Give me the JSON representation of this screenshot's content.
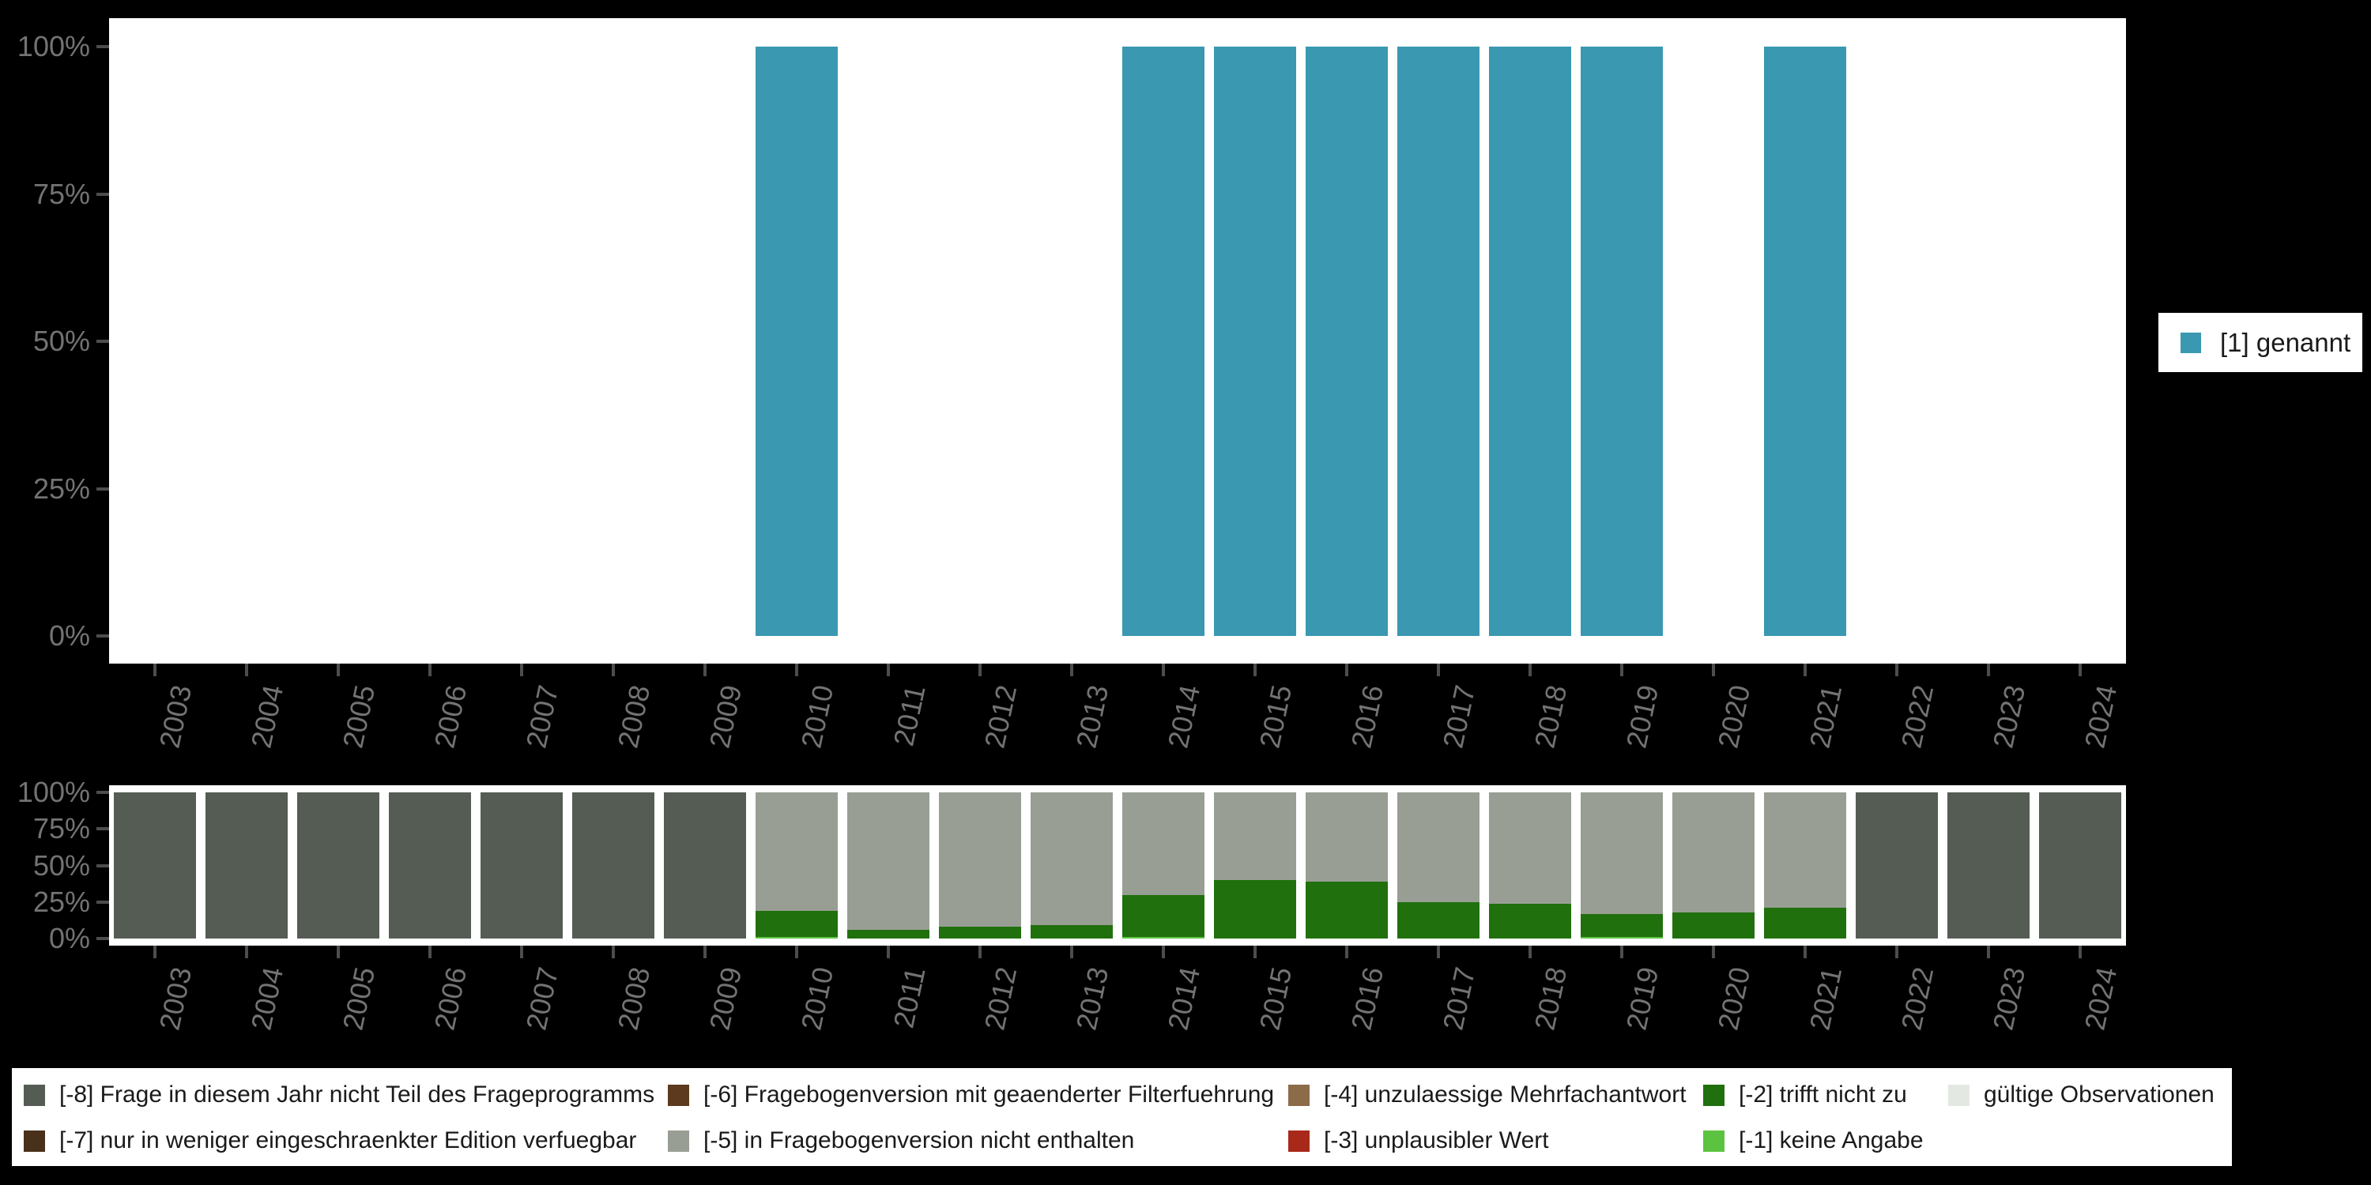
{
  "colors": {
    "background": "#000000",
    "panel": "#ffffff",
    "axis_text": "#737373",
    "axis_tick": "#4d4d4d",
    "legend_text": "#1a1a1a",
    "genannt_teal": "#3a98b1",
    "minus8_gray": "#555c54",
    "minus7_darkbrown": "#49301b",
    "minus6_brown": "#5d3a1e",
    "minus5_lightgray": "#999e95",
    "minus4_tan": "#8c6b49",
    "minus3_red": "#a8281a",
    "minus2_darkgreen": "#20700d",
    "minus1_lightgreen": "#5cc340",
    "valid_palegray": "#e4e8e2"
  },
  "top_legend": {
    "label": "[1] genannt",
    "color": "#3a98b1"
  },
  "bottom_legend": {
    "items": [
      {
        "label": "[-8] Frage in diesem Jahr nicht Teil des Frageprogramms",
        "color": "#555c54",
        "col": 1,
        "row": 1
      },
      {
        "label": "[-7] nur in weniger eingeschraenkter Edition verfuegbar",
        "color": "#49301b",
        "col": 1,
        "row": 2
      },
      {
        "label": "[-6] Fragebogenversion mit geaenderter Filterfuehrung",
        "color": "#5d3a1e",
        "col": 2,
        "row": 1
      },
      {
        "label": "[-5] in Fragebogenversion nicht enthalten",
        "color": "#999e95",
        "col": 2,
        "row": 2
      },
      {
        "label": "[-4] unzulaessige Mehrfachantwort",
        "color": "#8c6b49",
        "col": 3,
        "row": 1
      },
      {
        "label": "[-3] unplausibler Wert",
        "color": "#a8281a",
        "col": 3,
        "row": 2
      },
      {
        "label": "[-2] trifft nicht zu",
        "color": "#20700d",
        "col": 4,
        "row": 1
      },
      {
        "label": "[-1] keine Angabe",
        "color": "#5cc340",
        "col": 4,
        "row": 2
      },
      {
        "label": "gültige Observationen",
        "color": "#e4e8e2",
        "col": 5,
        "row": 1
      }
    ]
  },
  "chart_data": [
    {
      "type": "bar",
      "title": "",
      "categories": [
        "2003",
        "2004",
        "2005",
        "2006",
        "2007",
        "2008",
        "2009",
        "2010",
        "2011",
        "2012",
        "2013",
        "2014",
        "2015",
        "2016",
        "2017",
        "2018",
        "2019",
        "2020",
        "2021",
        "2022",
        "2023",
        "2024"
      ],
      "series": [
        {
          "name": "[1] genannt",
          "color": "#3a98b1",
          "values": [
            null,
            null,
            null,
            null,
            null,
            null,
            null,
            100,
            null,
            null,
            null,
            100,
            100,
            100,
            100,
            100,
            100,
            null,
            100,
            null,
            null,
            null
          ]
        }
      ],
      "xlabel": "",
      "ylabel": "",
      "ytick_labels": [
        "0%",
        "25%",
        "50%",
        "75%",
        "100%"
      ],
      "ylim": [
        0,
        100
      ],
      "grid": false,
      "legend_position": "right"
    },
    {
      "type": "stacked_bar",
      "title": "",
      "categories": [
        "2003",
        "2004",
        "2005",
        "2006",
        "2007",
        "2008",
        "2009",
        "2010",
        "2011",
        "2012",
        "2013",
        "2014",
        "2015",
        "2016",
        "2017",
        "2018",
        "2019",
        "2020",
        "2021",
        "2022",
        "2023",
        "2024"
      ],
      "series": [
        {
          "name": "[-8] Frage in diesem Jahr nicht Teil des Frageprogramms",
          "color": "#555c54",
          "values": [
            100,
            100,
            100,
            100,
            100,
            100,
            100,
            0,
            0,
            0,
            0,
            0,
            0,
            0,
            0,
            0,
            0,
            0,
            0,
            100,
            100,
            100
          ]
        },
        {
          "name": "[-5] in Fragebogenversion nicht enthalten",
          "color": "#999e95",
          "values": [
            0,
            0,
            0,
            0,
            0,
            0,
            0,
            81,
            94,
            92,
            91,
            70,
            60,
            61,
            75,
            76,
            83,
            82,
            79,
            0,
            0,
            0
          ]
        },
        {
          "name": "[-2] trifft nicht zu",
          "color": "#20700d",
          "values": [
            0,
            0,
            0,
            0,
            0,
            0,
            0,
            18,
            6,
            8,
            9,
            29,
            40,
            39,
            25,
            24,
            16,
            18,
            21,
            0,
            0,
            0
          ]
        },
        {
          "name": "[-1] keine Angabe",
          "color": "#5cc340",
          "values": [
            0,
            0,
            0,
            0,
            0,
            0,
            0,
            1,
            0,
            0,
            0,
            1,
            0,
            0,
            0,
            0,
            1,
            0,
            0,
            0,
            0,
            0
          ]
        }
      ],
      "xlabel": "",
      "ylabel": "",
      "ytick_labels": [
        "0%",
        "25%",
        "50%",
        "75%",
        "100%"
      ],
      "ylim": [
        0,
        100
      ],
      "grid": false,
      "legend_position": "bottom"
    }
  ]
}
